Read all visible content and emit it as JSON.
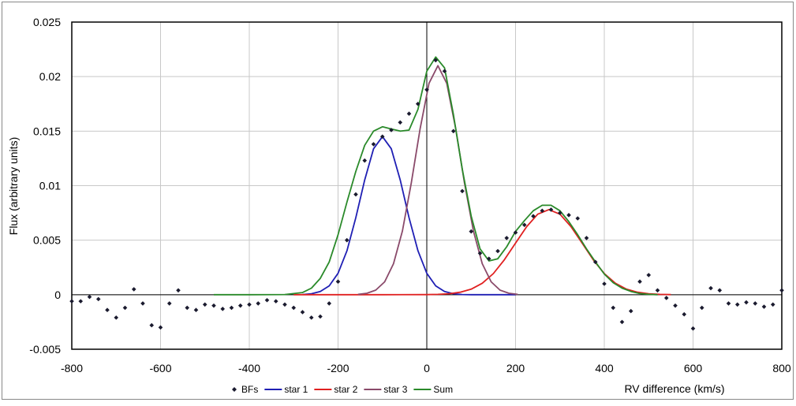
{
  "chart_data": {
    "type": "scatter",
    "title": "",
    "xlabel": "RV difference (km/s)",
    "ylabel": "Flux (arbitrary units)",
    "xlim": [
      -800,
      800
    ],
    "ylim": [
      -0.005,
      0.025
    ],
    "x_ticks": [
      "-800",
      "-600",
      "-400",
      "-200",
      "0",
      "200",
      "400",
      "600",
      "800"
    ],
    "y_ticks": [
      "-0.005",
      "0",
      "0.005",
      "0.01",
      "0.015",
      "0.02",
      "0.025"
    ],
    "grid": true,
    "legend_position": "bottom",
    "series": [
      {
        "name": "BFs",
        "kind": "markers",
        "color": "#1a1a2e",
        "x": [
          -800,
          -780,
          -760,
          -740,
          -720,
          -700,
          -680,
          -660,
          -640,
          -620,
          -600,
          -580,
          -560,
          -540,
          -520,
          -500,
          -480,
          -460,
          -440,
          -420,
          -400,
          -380,
          -360,
          -340,
          -320,
          -300,
          -280,
          -260,
          -240,
          -220,
          -200,
          -180,
          -160,
          -140,
          -120,
          -100,
          -80,
          -60,
          -40,
          -20,
          0,
          20,
          40,
          60,
          80,
          100,
          120,
          140,
          160,
          180,
          200,
          220,
          240,
          260,
          280,
          300,
          320,
          340,
          360,
          380,
          400,
          420,
          440,
          460,
          480,
          500,
          520,
          540,
          560,
          580,
          600,
          620,
          640,
          660,
          680,
          700,
          720,
          740,
          760,
          780,
          800
        ],
        "y": [
          -0.0006,
          -0.0006,
          -0.0002,
          -0.0004,
          -0.0014,
          -0.0021,
          -0.0012,
          0.0005,
          -0.0008,
          -0.0028,
          -0.003,
          -0.0008,
          0.0004,
          -0.0012,
          -0.0014,
          -0.0009,
          -0.001,
          -0.0013,
          -0.0012,
          -0.001,
          -0.0009,
          -0.0008,
          -0.0005,
          -0.0006,
          -0.0009,
          -0.0012,
          -0.0016,
          -0.0021,
          -0.002,
          -0.0008,
          0.0012,
          0.005,
          0.0092,
          0.0123,
          0.0138,
          0.0145,
          0.0151,
          0.0158,
          0.0166,
          0.0175,
          0.0188,
          0.0215,
          0.0205,
          0.015,
          0.0095,
          0.0058,
          0.0038,
          0.0033,
          0.004,
          0.0052,
          0.0057,
          0.0064,
          0.0072,
          0.0077,
          0.0078,
          0.0075,
          0.0073,
          0.007,
          0.0052,
          0.003,
          0.001,
          -0.0012,
          -0.0025,
          -0.0015,
          0.0012,
          0.0018,
          0.0004,
          -0.0003,
          -0.001,
          -0.0018,
          -0.0031,
          -0.0012,
          0.0006,
          0.0004,
          -0.0008,
          -0.0009,
          -0.0007,
          -0.0008,
          -0.0011,
          -0.0009,
          0.0004
        ]
      },
      {
        "name": "star 1",
        "kind": "line",
        "color": "#1f1fb4",
        "x": [
          -280,
          -260,
          -240,
          -220,
          -200,
          -180,
          -160,
          -140,
          -120,
          -100,
          -80,
          -60,
          -40,
          -20,
          0,
          20,
          40,
          60,
          80,
          100,
          120,
          140,
          160,
          180,
          200
        ],
        "y": [
          2e-05,
          9e-05,
          0.00029,
          0.00081,
          0.00196,
          0.00403,
          0.00706,
          0.01053,
          0.01338,
          0.0145,
          0.01338,
          0.01053,
          0.00706,
          0.00403,
          0.00196,
          0.00081,
          0.00029,
          9e-05,
          2e-05,
          0,
          0,
          0,
          0,
          0,
          0
        ]
      },
      {
        "name": "star 2",
        "kind": "line",
        "color": "#e02020",
        "x": [
          -300,
          -200,
          -100,
          0,
          25,
          50,
          75,
          100,
          125,
          150,
          175,
          200,
          225,
          250,
          275,
          300,
          325,
          350,
          375,
          400,
          425,
          450,
          475,
          500,
          525,
          550
        ],
        "y": [
          0,
          0,
          0,
          1e-05,
          3e-05,
          9e-05,
          0.00023,
          0.00051,
          0.00105,
          0.00194,
          0.00321,
          0.00473,
          0.00624,
          0.00738,
          0.0078,
          0.00738,
          0.00624,
          0.00473,
          0.00321,
          0.00194,
          0.00105,
          0.00051,
          0.00023,
          9e-05,
          3e-05,
          1e-05
        ]
      },
      {
        "name": "star 3",
        "kind": "line",
        "color": "#8a4a6a",
        "x": [
          -155,
          -135,
          -115,
          -95,
          -75,
          -55,
          -35,
          -15,
          5,
          25,
          45,
          65,
          85,
          105,
          125,
          145,
          165,
          185,
          205
        ],
        "y": [
          3e-05,
          0.00013,
          0.00042,
          0.00118,
          0.00284,
          0.00584,
          0.01023,
          0.01525,
          0.01938,
          0.021,
          0.01938,
          0.01525,
          0.01023,
          0.00584,
          0.00284,
          0.00118,
          0.00042,
          0.00013,
          3e-05
        ]
      },
      {
        "name": "Sum",
        "kind": "line",
        "color": "#2a8a2a",
        "x": [
          -480,
          -400,
          -320,
          -280,
          -260,
          -240,
          -220,
          -200,
          -180,
          -160,
          -140,
          -120,
          -100,
          -80,
          -60,
          -40,
          -20,
          0,
          20,
          40,
          60,
          80,
          100,
          120,
          140,
          160,
          180,
          200,
          220,
          240,
          260,
          280,
          300,
          320,
          340,
          360,
          380,
          400,
          420,
          440,
          460,
          480,
          500,
          520
        ],
        "y": [
          0,
          0,
          2e-05,
          0.0002,
          0.0006,
          0.0015,
          0.003,
          0.0055,
          0.0085,
          0.0113,
          0.0137,
          0.015,
          0.0154,
          0.0152,
          0.015,
          0.0151,
          0.017,
          0.0205,
          0.0218,
          0.0208,
          0.0165,
          0.0115,
          0.0072,
          0.0042,
          0.0031,
          0.0033,
          0.0044,
          0.0058,
          0.0068,
          0.0077,
          0.0082,
          0.0082,
          0.0077,
          0.0067,
          0.0055,
          0.0042,
          0.003,
          0.0019,
          0.0011,
          0.0006,
          0.0003,
          0.0001,
          3e-05,
          0
        ]
      }
    ]
  }
}
